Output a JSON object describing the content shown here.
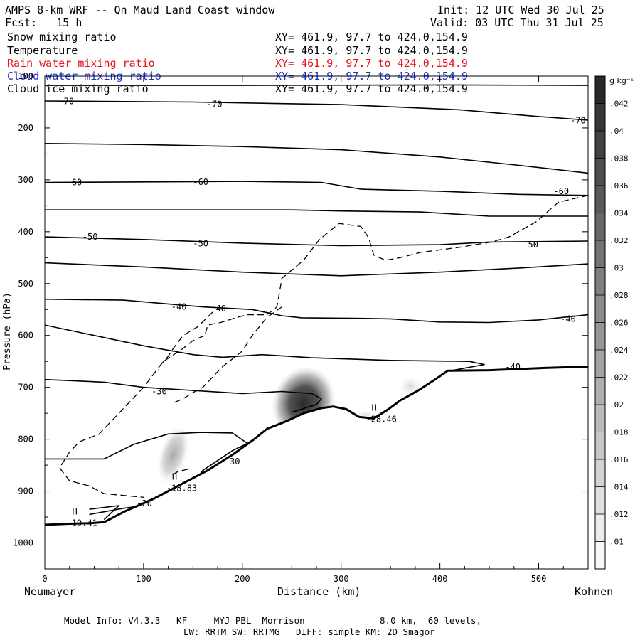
{
  "header": {
    "title": "AMPS 8-km WRF -- Qn Maud Land Coast window",
    "forecast": "Fcst:   15 h",
    "init": "Init: 12 UTC Wed 30 Jul 25",
    "valid": "Valid: 03 UTC Thu 31 Jul 25"
  },
  "fields": [
    {
      "name": "Snow mixing ratio",
      "xy": "XY= 461.9, 97.7 to 424.0,154.9",
      "color": "#000000"
    },
    {
      "name": "Temperature",
      "xy": "XY= 461.9, 97.7 to 424.0,154.9",
      "color": "#000000"
    },
    {
      "name": "Rain water mixing ratio",
      "xy": "XY= 461.9, 97.7 to 424.0,154.9",
      "color": "#e8101e"
    },
    {
      "name": "Cloud water mixing ratio",
      "xy": "XY= 461.9, 97.7 to 424.0,154.9",
      "color": "#2030c8"
    },
    {
      "name": "Cloud ice mixing ratio",
      "xy": "XY= 461.9, 97.7 to 424.0,154.9",
      "color": "#000000"
    }
  ],
  "footer": {
    "line1": "Model Info: V4.3.3   KF     MYJ PBL  Morrison              8.0 km,  60 levels,",
    "line2": "LW: RRTM SW: RRTMG   DIFF: simple KM: 2D Smagor"
  },
  "chart_data": {
    "type": "cross-section",
    "xlabel": "Distance (km)",
    "ylabel": "Pressure (hPa)",
    "xlim": [
      0,
      550
    ],
    "ylim": [
      1050,
      100
    ],
    "xticks": [
      0,
      100,
      200,
      300,
      400,
      500
    ],
    "yticks": [
      100,
      200,
      300,
      400,
      500,
      600,
      700,
      800,
      900,
      1000
    ],
    "left_endpoint": "Neumayer",
    "right_endpoint": "Kohnen",
    "colorbar": {
      "unit": "g kg⁻¹",
      "levels": [
        ".01",
        ".012",
        ".014",
        ".016",
        ".018",
        ".02",
        ".022",
        ".024",
        ".026",
        ".028",
        ".03",
        ".032",
        ".034",
        ".036",
        ".038",
        ".04",
        ".042"
      ],
      "label_values": [
        0.01,
        0.012,
        0.014,
        0.016,
        0.018,
        0.02,
        0.022,
        0.024,
        0.026,
        0.028,
        0.03,
        0.032,
        0.034,
        0.036,
        0.038,
        0.04,
        0.042
      ]
    },
    "terrain": [
      [
        0,
        965
      ],
      [
        25,
        963
      ],
      [
        45,
        962
      ],
      [
        60,
        960
      ],
      [
        80,
        940
      ],
      [
        110,
        915
      ],
      [
        140,
        885
      ],
      [
        165,
        860
      ],
      [
        190,
        830
      ],
      [
        212,
        800
      ],
      [
        225,
        780
      ],
      [
        245,
        765
      ],
      [
        262,
        750
      ],
      [
        280,
        740
      ],
      [
        292,
        737
      ],
      [
        305,
        742
      ],
      [
        318,
        757
      ],
      [
        333,
        760
      ],
      [
        348,
        742
      ],
      [
        360,
        725
      ],
      [
        378,
        706
      ],
      [
        395,
        685
      ],
      [
        408,
        668
      ],
      [
        450,
        667
      ],
      [
        500,
        663
      ],
      [
        550,
        660
      ]
    ],
    "isotherms": [
      {
        "value": -70,
        "label": "-70",
        "points": [
          [
            0,
            118
          ],
          [
            80,
            118
          ],
          [
            200,
            118
          ],
          [
            400,
            117
          ],
          [
            550,
            118
          ]
        ]
      },
      {
        "value": -70,
        "label": "-70",
        "points": [
          [
            0,
            148
          ],
          [
            150,
            150
          ],
          [
            300,
            155
          ],
          [
            420,
            165
          ],
          [
            500,
            178
          ],
          [
            550,
            185
          ]
        ]
      },
      {
        "value": -70,
        "label": "",
        "points": [
          [
            0,
            230
          ],
          [
            100,
            232
          ],
          [
            200,
            236
          ],
          [
            300,
            242
          ],
          [
            400,
            256
          ],
          [
            480,
            272
          ],
          [
            550,
            287
          ]
        ]
      },
      {
        "value": -60,
        "label": "-60",
        "points": [
          [
            0,
            305
          ],
          [
            100,
            304
          ],
          [
            200,
            303
          ],
          [
            280,
            305
          ],
          [
            320,
            318
          ],
          [
            400,
            322
          ],
          [
            480,
            328
          ],
          [
            550,
            330
          ]
        ]
      },
      {
        "value": -60,
        "label": "",
        "points": [
          [
            0,
            358
          ],
          [
            150,
            358
          ],
          [
            250,
            358
          ],
          [
            300,
            360
          ],
          [
            380,
            362
          ],
          [
            450,
            370
          ],
          [
            550,
            370
          ]
        ]
      },
      {
        "value": -50,
        "label": "-50",
        "points": [
          [
            0,
            410
          ],
          [
            100,
            415
          ],
          [
            200,
            422
          ],
          [
            300,
            427
          ],
          [
            400,
            425
          ],
          [
            450,
            420
          ],
          [
            550,
            418
          ]
        ]
      },
      {
        "value": -50,
        "label": "",
        "points": [
          [
            0,
            460
          ],
          [
            100,
            468
          ],
          [
            200,
            478
          ],
          [
            300,
            485
          ],
          [
            400,
            478
          ],
          [
            480,
            470
          ],
          [
            550,
            462
          ]
        ]
      },
      {
        "value": -40,
        "label": "-40",
        "points": [
          [
            0,
            530
          ],
          [
            80,
            532
          ],
          [
            160,
            545
          ],
          [
            210,
            550
          ],
          [
            240,
            562
          ],
          [
            260,
            566
          ],
          [
            320,
            567
          ],
          [
            350,
            568
          ],
          [
            400,
            574
          ],
          [
            450,
            575
          ],
          [
            500,
            570
          ],
          [
            550,
            560
          ]
        ]
      },
      {
        "value": -40,
        "label": "",
        "points": [
          [
            0,
            580
          ],
          [
            100,
            620
          ],
          [
            150,
            637
          ],
          [
            180,
            642
          ],
          [
            220,
            637
          ],
          [
            270,
            643
          ],
          [
            350,
            648
          ],
          [
            430,
            650
          ],
          [
            445,
            656
          ],
          [
            405,
            670
          ]
        ]
      },
      {
        "value": -30,
        "label": "-30",
        "points": [
          [
            0,
            685
          ],
          [
            60,
            690
          ],
          [
            100,
            700
          ],
          [
            150,
            706
          ],
          [
            200,
            712
          ],
          [
            240,
            708
          ],
          [
            270,
            712
          ],
          [
            280,
            722
          ],
          [
            275,
            733
          ],
          [
            250,
            748
          ]
        ]
      },
      {
        "value": -30,
        "label": "",
        "points": [
          [
            0,
            838
          ],
          [
            60,
            838
          ],
          [
            90,
            810
          ],
          [
            125,
            790
          ],
          [
            158,
            787
          ],
          [
            190,
            788
          ],
          [
            205,
            808
          ],
          [
            190,
            822
          ],
          [
            160,
            860
          ],
          [
            150,
            885
          ]
        ]
      },
      {
        "value": -20,
        "label": "-20",
        "points": [
          [
            45,
            945
          ],
          [
            80,
            933
          ],
          [
            108,
            926
          ],
          [
            118,
            921
          ],
          [
            130,
            914
          ]
        ]
      },
      {
        "value": -20,
        "label": "",
        "points": [
          [
            45,
            935
          ],
          [
            75,
            928
          ],
          [
            60,
            955
          ]
        ]
      }
    ],
    "ice_dashed": [
      {
        "points": [
          [
            550,
            330
          ],
          [
            520,
            343
          ],
          [
            498,
            380
          ],
          [
            470,
            410
          ],
          [
            452,
            420
          ],
          [
            420,
            430
          ],
          [
            380,
            440
          ],
          [
            360,
            450
          ],
          [
            345,
            455
          ],
          [
            333,
            445
          ],
          [
            328,
            412
          ],
          [
            320,
            390
          ],
          [
            298,
            384
          ],
          [
            278,
            415
          ],
          [
            262,
            455
          ],
          [
            240,
            490
          ],
          [
            235,
            545
          ],
          [
            225,
            560
          ],
          [
            205,
            560
          ],
          [
            195,
            565
          ],
          [
            178,
            575
          ],
          [
            165,
            580
          ],
          [
            162,
            600
          ],
          [
            150,
            610
          ],
          [
            140,
            625
          ],
          [
            120,
            650
          ],
          [
            100,
            700
          ],
          [
            80,
            740
          ],
          [
            55,
            790
          ],
          [
            35,
            805
          ],
          [
            25,
            825
          ],
          [
            15,
            855
          ],
          [
            25,
            880
          ],
          [
            45,
            890
          ],
          [
            60,
            905
          ],
          [
            100,
            912
          ]
        ]
      },
      {
        "points": [
          [
            240,
            545
          ],
          [
            225,
            565
          ],
          [
            210,
            600
          ],
          [
            200,
            630
          ],
          [
            190,
            645
          ],
          [
            180,
            660
          ],
          [
            170,
            680
          ],
          [
            160,
            700
          ],
          [
            150,
            710
          ],
          [
            140,
            722
          ],
          [
            130,
            730
          ]
        ]
      },
      {
        "points": [
          [
            170,
            555
          ],
          [
            155,
            583
          ],
          [
            140,
            600
          ],
          [
            130,
            625
          ],
          [
            125,
            640
          ],
          [
            118,
            655
          ],
          [
            115,
            668
          ]
        ]
      },
      {
        "points": [
          [
            145,
            858
          ],
          [
            135,
            862
          ],
          [
            128,
            870
          ]
        ]
      }
    ],
    "snow_shading": [
      {
        "cx": 262,
        "cy": 730,
        "rx": 32,
        "ry": 72,
        "rot": 18,
        "max": 0.044
      },
      {
        "cx": 130,
        "cy": 830,
        "rx": 14,
        "ry": 58,
        "rot": 18,
        "max": 0.024
      },
      {
        "cx": 370,
        "cy": 698,
        "rx": 12,
        "ry": 20,
        "rot": 0,
        "max": 0.012
      },
      {
        "cx": 325,
        "cy": 753,
        "rx": 10,
        "ry": 8,
        "rot": 0,
        "max": 0.011
      }
    ],
    "maxima": [
      {
        "label": "H",
        "value": "-19.41",
        "x": 22,
        "p": 945
      },
      {
        "label": "H",
        "value": "-18.83",
        "x": 123,
        "p": 878
      },
      {
        "label": "H",
        "value": "-28.46",
        "x": 325,
        "p": 745
      }
    ],
    "contour_labels": [
      {
        "text": "-70",
        "x": 14,
        "p": 149
      },
      {
        "text": "-70",
        "x": 164,
        "p": 154
      },
      {
        "text": "-70",
        "x": 532,
        "p": 186
      },
      {
        "text": "-60",
        "x": 22,
        "p": 305
      },
      {
        "text": "-60",
        "x": 150,
        "p": 304
      },
      {
        "text": "-60",
        "x": 515,
        "p": 322
      },
      {
        "text": "-50",
        "x": 38,
        "p": 410
      },
      {
        "text": "-50",
        "x": 150,
        "p": 423
      },
      {
        "text": "-50",
        "x": 484,
        "p": 425
      },
      {
        "text": "-40",
        "x": 128,
        "p": 545
      },
      {
        "text": "-40",
        "x": 168,
        "p": 548
      },
      {
        "text": "-40",
        "x": 522,
        "p": 568
      },
      {
        "text": "-40",
        "x": 466,
        "p": 661
      },
      {
        "text": "-30",
        "x": 108,
        "p": 708
      },
      {
        "text": "-30",
        "x": 182,
        "p": 843
      },
      {
        "text": "-20",
        "x": 93,
        "p": 924
      }
    ]
  }
}
